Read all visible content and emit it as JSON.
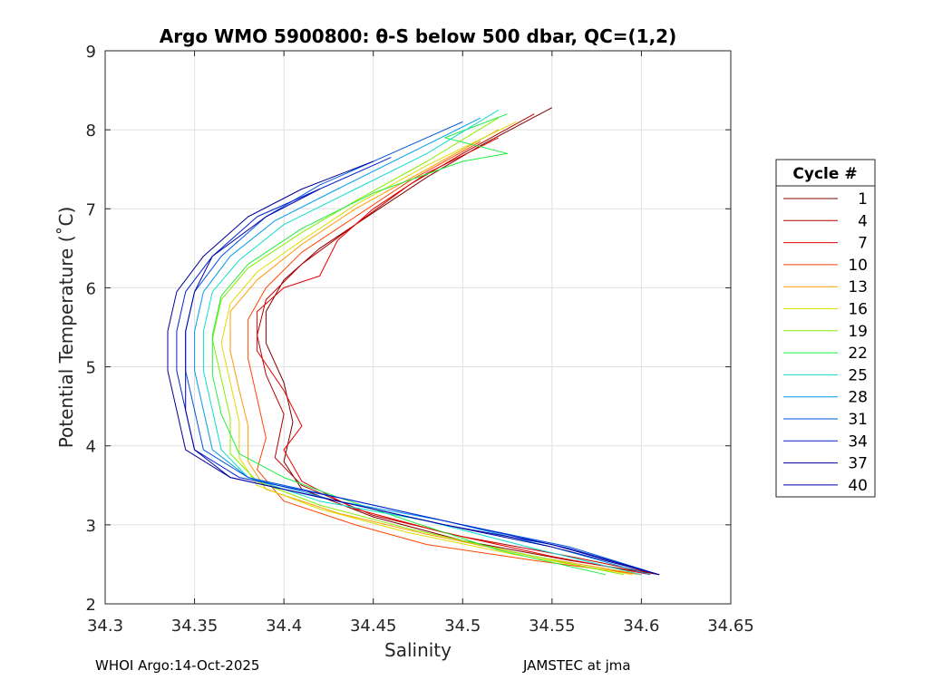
{
  "chart_data": {
    "type": "line",
    "title": "Argo WMO 5900800: θ-S below 500 dbar,  QC=(1,2)",
    "xlabel": "Salinity",
    "ylabel": "Potential Temperature (˚C)",
    "xlim": [
      34.3,
      34.65
    ],
    "ylim": [
      2,
      9
    ],
    "xticks": [
      34.3,
      34.35,
      34.4,
      34.45,
      34.5,
      34.55,
      34.6,
      34.65
    ],
    "yticks": [
      2,
      3,
      4,
      5,
      6,
      7,
      8,
      9
    ],
    "xtick_labels": [
      "34.3",
      "34.35",
      "34.4",
      "34.45",
      "34.5",
      "34.55",
      "34.6",
      "34.65"
    ],
    "ytick_labels": [
      "2",
      "3",
      "4",
      "5",
      "6",
      "7",
      "8",
      "9"
    ],
    "grid": true,
    "legend": {
      "title": "Cycle #",
      "position": "right",
      "entries": [
        {
          "label": "1",
          "color": "#800000"
        },
        {
          "label": "4",
          "color": "#b40000"
        },
        {
          "label": "7",
          "color": "#e80000"
        },
        {
          "label": "10",
          "color": "#ff4400"
        },
        {
          "label": "13",
          "color": "#ff9900"
        },
        {
          "label": "16",
          "color": "#dddd00"
        },
        {
          "label": "19",
          "color": "#88ee00"
        },
        {
          "label": "22",
          "color": "#22ee44"
        },
        {
          "label": "25",
          "color": "#11ddcc"
        },
        {
          "label": "28",
          "color": "#0099ee"
        },
        {
          "label": "31",
          "color": "#0055dd"
        },
        {
          "label": "34",
          "color": "#0022cc"
        },
        {
          "label": "37",
          "color": "#000099"
        },
        {
          "label": "40",
          "color": "#0000aa"
        }
      ]
    },
    "series": [
      {
        "name": "1",
        "color": "#800000",
        "points": [
          [
            34.61,
            2.37
          ],
          [
            34.56,
            2.55
          ],
          [
            34.5,
            2.8
          ],
          [
            34.45,
            3.1
          ],
          [
            34.41,
            3.45
          ],
          [
            34.4,
            3.8
          ],
          [
            34.405,
            4.3
          ],
          [
            34.4,
            4.8
          ],
          [
            34.39,
            5.3
          ],
          [
            34.39,
            5.7
          ],
          [
            34.4,
            6.1
          ],
          [
            34.42,
            6.5
          ],
          [
            34.45,
            6.95
          ],
          [
            34.48,
            7.4
          ],
          [
            34.51,
            7.8
          ],
          [
            34.55,
            8.28
          ]
        ]
      },
      {
        "name": "4",
        "color": "#b40000",
        "points": [
          [
            34.61,
            2.37
          ],
          [
            34.56,
            2.6
          ],
          [
            34.5,
            2.85
          ],
          [
            34.45,
            3.12
          ],
          [
            34.41,
            3.5
          ],
          [
            34.395,
            3.85
          ],
          [
            34.4,
            4.4
          ],
          [
            34.39,
            4.9
          ],
          [
            34.385,
            5.4
          ],
          [
            34.39,
            5.85
          ],
          [
            34.41,
            6.3
          ],
          [
            34.44,
            6.8
          ],
          [
            34.47,
            7.3
          ],
          [
            34.5,
            7.7
          ],
          [
            34.54,
            8.2
          ]
        ]
      },
      {
        "name": "7",
        "color": "#e80000",
        "points": [
          [
            34.605,
            2.37
          ],
          [
            34.55,
            2.6
          ],
          [
            34.49,
            2.9
          ],
          [
            34.44,
            3.2
          ],
          [
            34.41,
            3.55
          ],
          [
            34.4,
            3.95
          ],
          [
            34.41,
            4.25
          ],
          [
            34.4,
            4.7
          ],
          [
            34.385,
            5.2
          ],
          [
            34.385,
            5.7
          ],
          [
            34.4,
            6.0
          ],
          [
            34.42,
            6.15
          ],
          [
            34.43,
            6.6
          ],
          [
            34.45,
            7.0
          ],
          [
            34.48,
            7.45
          ],
          [
            34.52,
            7.9
          ]
        ]
      },
      {
        "name": "10",
        "color": "#ff4400",
        "points": [
          [
            34.6,
            2.37
          ],
          [
            34.54,
            2.55
          ],
          [
            34.48,
            2.75
          ],
          [
            34.44,
            3.0
          ],
          [
            34.4,
            3.3
          ],
          [
            34.385,
            3.7
          ],
          [
            34.39,
            4.1
          ],
          [
            34.385,
            4.6
          ],
          [
            34.38,
            5.1
          ],
          [
            34.38,
            5.6
          ],
          [
            34.39,
            6.0
          ],
          [
            34.41,
            6.45
          ],
          [
            34.44,
            6.9
          ],
          [
            34.47,
            7.35
          ],
          [
            34.51,
            7.85
          ]
        ]
      },
      {
        "name": "13",
        "color": "#ff9900",
        "points": [
          [
            34.6,
            2.37
          ],
          [
            34.54,
            2.6
          ],
          [
            34.48,
            2.88
          ],
          [
            34.43,
            3.15
          ],
          [
            34.39,
            3.45
          ],
          [
            34.38,
            3.8
          ],
          [
            34.38,
            4.25
          ],
          [
            34.375,
            4.7
          ],
          [
            34.37,
            5.2
          ],
          [
            34.37,
            5.7
          ],
          [
            34.385,
            6.1
          ],
          [
            34.41,
            6.55
          ],
          [
            34.44,
            7.0
          ],
          [
            34.48,
            7.5
          ],
          [
            34.52,
            8.0
          ]
        ]
      },
      {
        "name": "16",
        "color": "#dddd00",
        "points": [
          [
            34.595,
            2.37
          ],
          [
            34.53,
            2.62
          ],
          [
            34.47,
            2.9
          ],
          [
            34.42,
            3.2
          ],
          [
            34.385,
            3.5
          ],
          [
            34.375,
            3.85
          ],
          [
            34.375,
            4.3
          ],
          [
            34.37,
            4.8
          ],
          [
            34.365,
            5.3
          ],
          [
            34.37,
            5.8
          ],
          [
            34.385,
            6.2
          ],
          [
            34.41,
            6.6
          ],
          [
            34.44,
            7.05
          ],
          [
            34.48,
            7.55
          ],
          [
            34.53,
            8.1
          ]
        ]
      },
      {
        "name": "19",
        "color": "#88ee00",
        "points": [
          [
            34.59,
            2.37
          ],
          [
            34.53,
            2.65
          ],
          [
            34.47,
            2.95
          ],
          [
            34.42,
            3.25
          ],
          [
            34.385,
            3.55
          ],
          [
            34.37,
            3.9
          ],
          [
            34.37,
            4.35
          ],
          [
            34.365,
            4.85
          ],
          [
            34.36,
            5.35
          ],
          [
            34.365,
            5.85
          ],
          [
            34.38,
            6.25
          ],
          [
            34.41,
            6.7
          ],
          [
            34.44,
            7.1
          ],
          [
            34.48,
            7.6
          ],
          [
            34.52,
            8.15
          ]
        ]
      },
      {
        "name": "22",
        "color": "#22ee44",
        "points": [
          [
            34.58,
            2.37
          ],
          [
            34.52,
            2.68
          ],
          [
            34.47,
            3.05
          ],
          [
            34.43,
            3.35
          ],
          [
            34.4,
            3.6
          ],
          [
            34.375,
            3.9
          ],
          [
            34.365,
            4.4
          ],
          [
            34.36,
            4.9
          ],
          [
            34.36,
            5.4
          ],
          [
            34.365,
            5.9
          ],
          [
            34.38,
            6.3
          ],
          [
            34.41,
            6.75
          ],
          [
            34.45,
            7.2
          ],
          [
            34.5,
            7.6
          ],
          [
            34.525,
            7.7
          ],
          [
            34.49,
            7.9
          ],
          [
            34.525,
            8.2
          ]
        ]
      },
      {
        "name": "25",
        "color": "#11ddcc",
        "points": [
          [
            34.6,
            2.37
          ],
          [
            34.54,
            2.7
          ],
          [
            34.48,
            3.05
          ],
          [
            34.42,
            3.3
          ],
          [
            34.38,
            3.6
          ],
          [
            34.365,
            3.95
          ],
          [
            34.36,
            4.45
          ],
          [
            34.355,
            4.95
          ],
          [
            34.355,
            5.45
          ],
          [
            34.36,
            5.95
          ],
          [
            34.375,
            6.35
          ],
          [
            34.4,
            6.8
          ],
          [
            34.44,
            7.25
          ],
          [
            34.48,
            7.7
          ],
          [
            34.52,
            8.25
          ]
        ]
      },
      {
        "name": "28",
        "color": "#0099ee",
        "points": [
          [
            34.605,
            2.37
          ],
          [
            34.55,
            2.72
          ],
          [
            34.49,
            3.05
          ],
          [
            34.43,
            3.3
          ],
          [
            34.38,
            3.6
          ],
          [
            34.36,
            3.95
          ],
          [
            34.355,
            4.45
          ],
          [
            34.35,
            4.95
          ],
          [
            34.35,
            5.45
          ],
          [
            34.355,
            5.95
          ],
          [
            34.37,
            6.4
          ],
          [
            34.395,
            6.85
          ],
          [
            34.43,
            7.25
          ],
          [
            34.47,
            7.7
          ],
          [
            34.51,
            8.15
          ]
        ]
      },
      {
        "name": "31",
        "color": "#0055dd",
        "points": [
          [
            34.61,
            2.37
          ],
          [
            34.56,
            2.72
          ],
          [
            34.5,
            3.0
          ],
          [
            34.44,
            3.3
          ],
          [
            34.38,
            3.6
          ],
          [
            34.355,
            3.95
          ],
          [
            34.35,
            4.45
          ],
          [
            34.345,
            4.95
          ],
          [
            34.345,
            5.45
          ],
          [
            34.35,
            5.95
          ],
          [
            34.365,
            6.4
          ],
          [
            34.39,
            6.9
          ],
          [
            34.42,
            7.3
          ],
          [
            34.46,
            7.7
          ],
          [
            34.5,
            8.1
          ]
        ]
      },
      {
        "name": "34",
        "color": "#0022cc",
        "points": [
          [
            34.61,
            2.37
          ],
          [
            34.56,
            2.7
          ],
          [
            34.5,
            3.0
          ],
          [
            34.44,
            3.3
          ],
          [
            34.375,
            3.6
          ],
          [
            34.35,
            3.95
          ],
          [
            34.345,
            4.45
          ],
          [
            34.34,
            4.95
          ],
          [
            34.34,
            5.45
          ],
          [
            34.345,
            5.95
          ],
          [
            34.36,
            6.4
          ],
          [
            34.385,
            6.9
          ],
          [
            34.42,
            7.25
          ],
          [
            34.46,
            7.65
          ]
        ]
      },
      {
        "name": "37",
        "color": "#000099",
        "points": [
          [
            34.61,
            2.37
          ],
          [
            34.55,
            2.72
          ],
          [
            34.49,
            3.0
          ],
          [
            34.43,
            3.3
          ],
          [
            34.37,
            3.6
          ],
          [
            34.345,
            3.95
          ],
          [
            34.34,
            4.45
          ],
          [
            34.335,
            4.95
          ],
          [
            34.335,
            5.45
          ],
          [
            34.34,
            5.95
          ],
          [
            34.355,
            6.4
          ],
          [
            34.38,
            6.9
          ],
          [
            34.41,
            7.25
          ],
          [
            34.45,
            7.6
          ]
        ]
      },
      {
        "name": "40",
        "color": "#0000aa",
        "points": [
          [
            34.61,
            2.37
          ],
          [
            34.55,
            2.75
          ],
          [
            34.49,
            3.0
          ],
          [
            34.43,
            3.3
          ],
          [
            34.37,
            3.6
          ],
          [
            34.35,
            3.95
          ],
          [
            34.345,
            4.45
          ],
          [
            34.345,
            4.95
          ],
          [
            34.345,
            5.45
          ],
          [
            34.35,
            5.95
          ],
          [
            34.36,
            6.4
          ],
          [
            34.39,
            6.9
          ],
          [
            34.42,
            7.25
          ]
        ]
      }
    ]
  },
  "footer": {
    "left": "WHOI Argo:14-Oct-2025",
    "right": "JAMSTEC at jma"
  }
}
